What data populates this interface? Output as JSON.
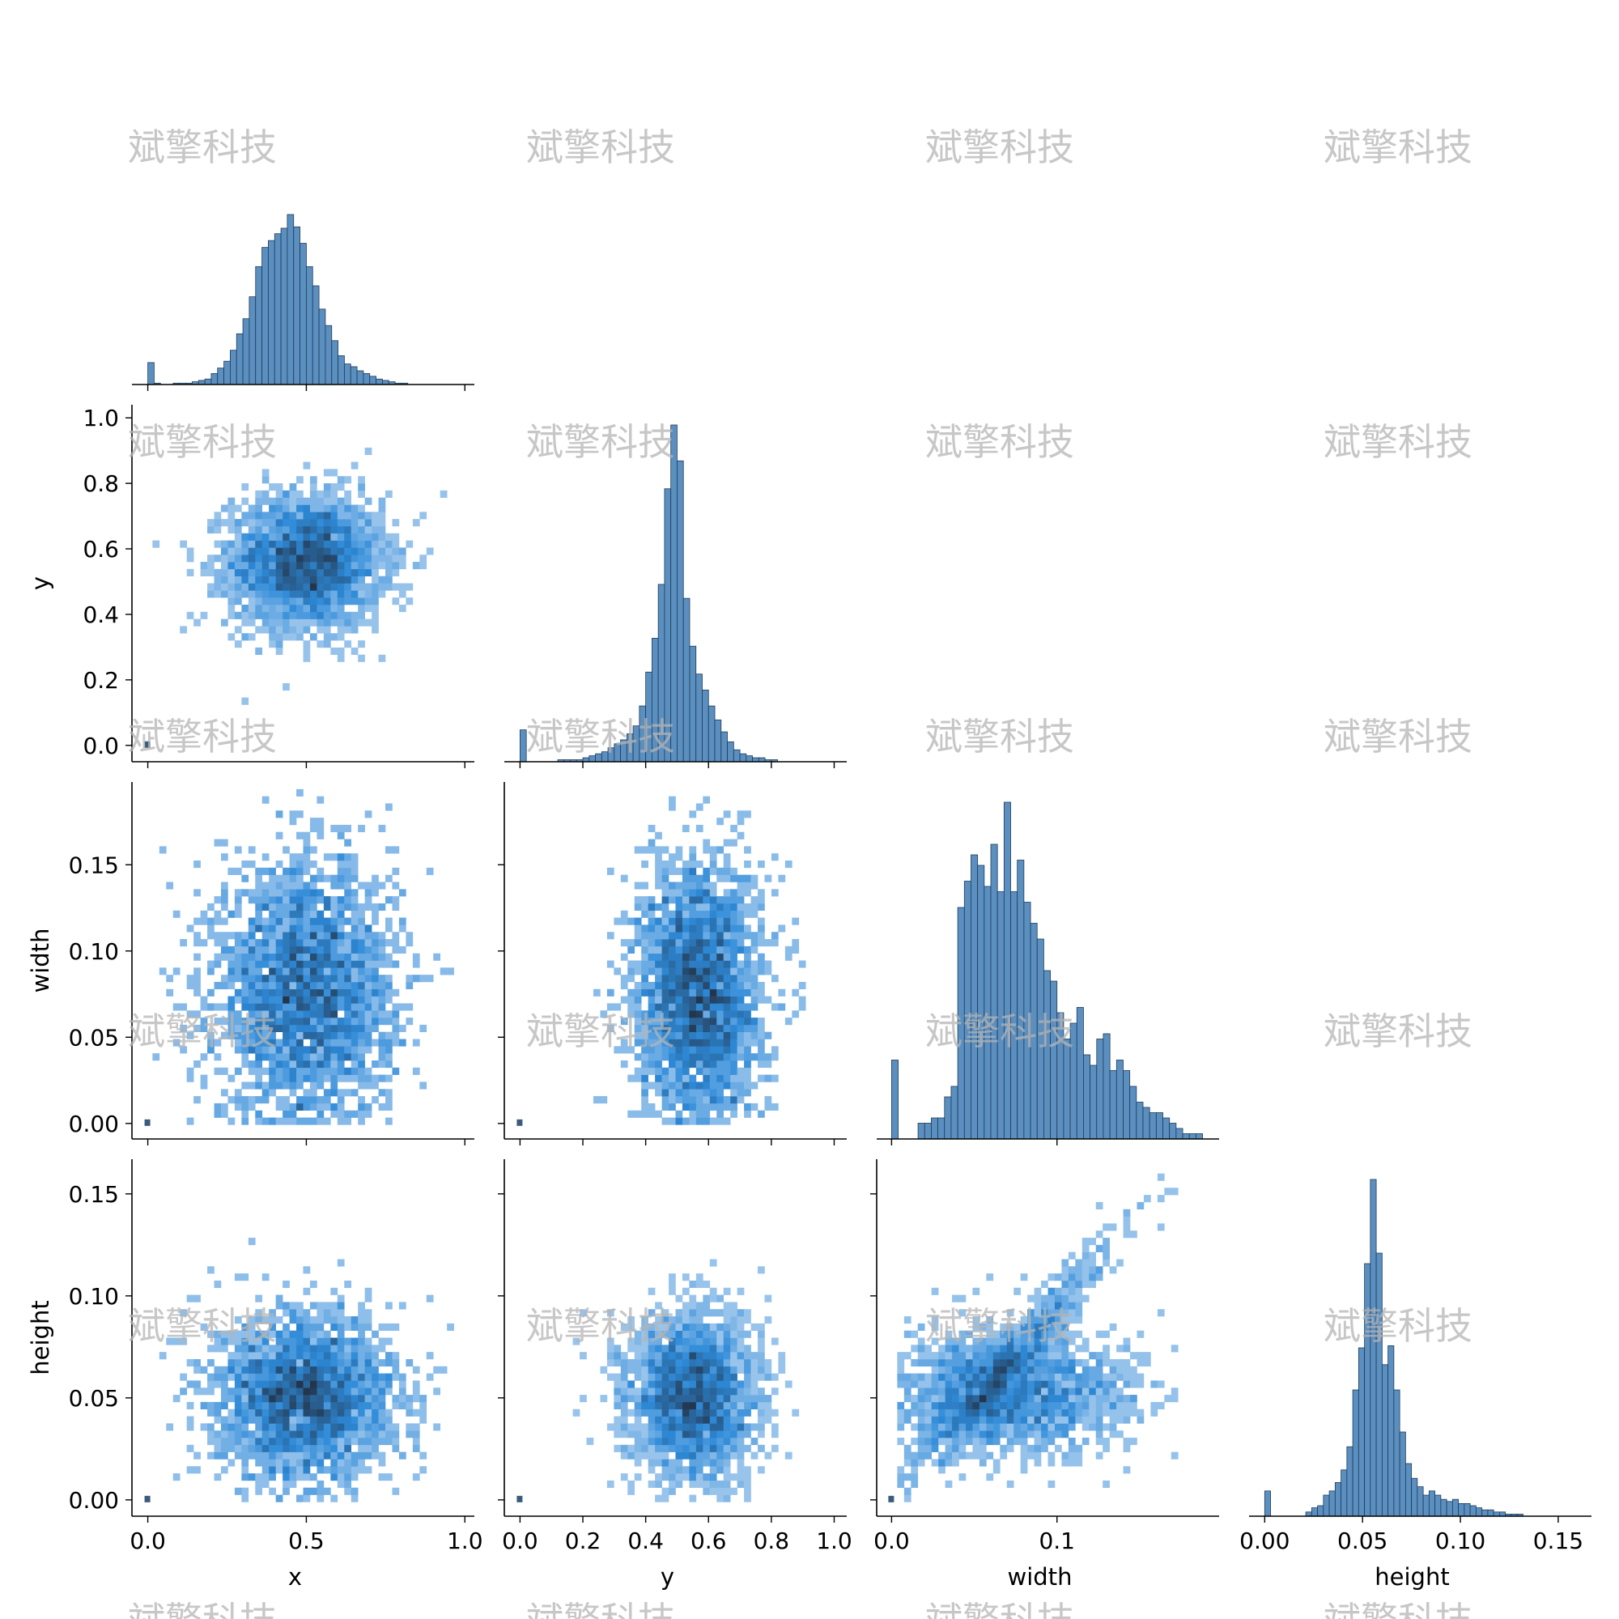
{
  "watermark": "斌擎科技",
  "chart_data": {
    "type": "pairplot",
    "variables": [
      "x",
      "y",
      "width",
      "height"
    ],
    "diag_type": "hist",
    "offdiag_type": "hist2d",
    "corner": true,
    "colors": {
      "bar_fill": "#5b8fc0",
      "bar_edge": "#1f3b57",
      "heat_low": "#c5dcf4",
      "heat_mid": "#2e8ad8",
      "heat_high": "#23364d"
    },
    "axes": {
      "x": {
        "label": "x",
        "range": [
          -0.05,
          1.03
        ],
        "ticks": [
          "0.0",
          "0.5",
          "1.0"
        ],
        "tick_values": [
          0,
          0.5,
          1.0
        ]
      },
      "y": {
        "label": "y",
        "range": [
          -0.05,
          1.04
        ],
        "ticks": [
          "0.0",
          "0.2",
          "0.4",
          "0.6",
          "0.8",
          "1.0"
        ],
        "tick_values": [
          0,
          0.2,
          0.4,
          0.6,
          0.8,
          1.0
        ]
      },
      "width": {
        "label": "width",
        "range": [
          -0.009,
          0.198
        ],
        "ticks": [
          "0.0",
          "0.1"
        ],
        "tick_values": [
          0,
          0.1
        ],
        "y_ticks": [
          "0.00",
          "0.05",
          "0.10",
          "0.15"
        ],
        "y_tick_values": [
          0,
          0.05,
          0.1,
          0.15
        ]
      },
      "height": {
        "label": "height",
        "range": [
          -0.008,
          0.167
        ],
        "ticks": [
          "0.00",
          "0.05",
          "0.10",
          "0.15"
        ],
        "tick_values": [
          0,
          0.05,
          0.1,
          0.15
        ]
      }
    },
    "diagonal": [
      {
        "variable": "x",
        "bins": [
          0.0,
          0.02,
          0.04,
          0.06,
          0.08,
          0.1,
          0.12,
          0.14,
          0.16,
          0.18,
          0.2,
          0.22,
          0.24,
          0.26,
          0.28,
          0.3,
          0.32,
          0.34,
          0.36,
          0.38,
          0.4,
          0.42,
          0.44,
          0.46,
          0.48,
          0.5,
          0.52,
          0.54,
          0.56,
          0.58,
          0.6,
          0.62,
          0.64,
          0.66,
          0.68,
          0.7,
          0.72,
          0.74,
          0.76,
          0.78,
          0.8,
          0.82,
          0.84,
          0.86,
          0.88,
          0.9,
          0.92,
          0.94,
          0.96,
          0.98
        ],
        "counts": [
          16,
          1,
          0,
          0,
          1,
          1,
          1,
          2,
          3,
          4,
          8,
          12,
          17,
          25,
          37,
          48,
          64,
          86,
          100,
          105,
          110,
          114,
          124,
          115,
          103,
          86,
          72,
          55,
          43,
          32,
          21,
          15,
          13,
          10,
          8,
          6,
          4,
          3,
          2,
          1,
          1,
          0,
          0,
          0,
          0,
          0,
          0,
          0,
          0,
          0
        ]
      },
      {
        "variable": "y",
        "bins": [
          0.0,
          0.02,
          0.04,
          0.06,
          0.08,
          0.1,
          0.12,
          0.14,
          0.16,
          0.18,
          0.2,
          0.22,
          0.24,
          0.26,
          0.28,
          0.3,
          0.32,
          0.34,
          0.36,
          0.38,
          0.4,
          0.42,
          0.44,
          0.46,
          0.48,
          0.5,
          0.52,
          0.54,
          0.56,
          0.58,
          0.6,
          0.62,
          0.64,
          0.66,
          0.68,
          0.7,
          0.72,
          0.74,
          0.76,
          0.78,
          0.8,
          0.82,
          0.84,
          0.86,
          0.88,
          0.9,
          0.92,
          0.94,
          0.96,
          0.98
        ],
        "counts": [
          16,
          0,
          0,
          0,
          0,
          0,
          1,
          1,
          1,
          1,
          2,
          3,
          4,
          5,
          7,
          9,
          11,
          14,
          18,
          28,
          45,
          62,
          89,
          137,
          169,
          151,
          82,
          58,
          44,
          36,
          28,
          21,
          15,
          10,
          6,
          4,
          3,
          2,
          2,
          1,
          1,
          0,
          0,
          0,
          0,
          0,
          0,
          0,
          0,
          0
        ]
      },
      {
        "variable": "width",
        "bins": [
          0.0,
          0.004,
          0.008,
          0.012,
          0.016,
          0.02,
          0.024,
          0.028,
          0.032,
          0.036,
          0.04,
          0.044,
          0.048,
          0.052,
          0.056,
          0.06,
          0.064,
          0.068,
          0.072,
          0.076,
          0.08,
          0.084,
          0.088,
          0.092,
          0.096,
          0.1,
          0.104,
          0.108,
          0.112,
          0.116,
          0.12,
          0.124,
          0.128,
          0.132,
          0.136,
          0.14,
          0.144,
          0.148,
          0.152,
          0.156,
          0.16,
          0.164,
          0.168,
          0.172,
          0.176,
          0.18,
          0.184
        ],
        "counts": [
          15,
          0,
          0,
          0,
          3,
          3,
          4,
          4,
          8,
          10,
          44,
          49,
          54,
          52,
          48,
          56,
          47,
          64,
          47,
          53,
          45,
          41,
          38,
          32,
          30,
          24,
          19,
          22,
          25,
          16,
          14,
          19,
          20,
          13,
          15,
          13,
          10,
          7,
          6,
          5,
          5,
          4,
          3,
          2,
          1,
          1,
          1
        ]
      },
      {
        "variable": "height",
        "bins": [
          0.0,
          0.003,
          0.006,
          0.009,
          0.012,
          0.015,
          0.018,
          0.021,
          0.024,
          0.027,
          0.03,
          0.033,
          0.036,
          0.039,
          0.042,
          0.045,
          0.048,
          0.051,
          0.054,
          0.057,
          0.06,
          0.063,
          0.066,
          0.069,
          0.072,
          0.075,
          0.078,
          0.081,
          0.084,
          0.087,
          0.09,
          0.093,
          0.096,
          0.099,
          0.102,
          0.105,
          0.108,
          0.111,
          0.114,
          0.117,
          0.12,
          0.123,
          0.126,
          0.129,
          0.132,
          0.135,
          0.138,
          0.141,
          0.144,
          0.147
        ],
        "counts": [
          12,
          0,
          0,
          0,
          0,
          0,
          0,
          2,
          4,
          5,
          10,
          12,
          16,
          22,
          33,
          60,
          80,
          120,
          160,
          125,
          72,
          81,
          60,
          40,
          25,
          18,
          14,
          10,
          12,
          10,
          8,
          7,
          8,
          6,
          6,
          5,
          4,
          3,
          3,
          2,
          2,
          1,
          1,
          1,
          0,
          0,
          0,
          0,
          0,
          0
        ]
      }
    ],
    "scatter_hist2d": [
      {
        "x": "x",
        "y": "y",
        "center": [
          0.5,
          0.56
        ],
        "spread": [
          0.12,
          0.1
        ],
        "outlier_at": [
          0.0,
          0.0
        ]
      },
      {
        "x": "x",
        "y": "width",
        "center": [
          0.5,
          0.075
        ],
        "spread": [
          0.14,
          0.038
        ],
        "outlier_at": [
          0.0,
          0.0
        ]
      },
      {
        "x": "y",
        "y": "width",
        "center": [
          0.57,
          0.075
        ],
        "spread": [
          0.1,
          0.038
        ],
        "outlier_at": [
          0.0,
          0.0
        ]
      },
      {
        "x": "x",
        "y": "height",
        "center": [
          0.5,
          0.05
        ],
        "spread": [
          0.14,
          0.02
        ],
        "outlier_at": [
          0.0,
          0.0
        ]
      },
      {
        "x": "y",
        "y": "height",
        "center": [
          0.55,
          0.05
        ],
        "spread": [
          0.1,
          0.02
        ],
        "outlier_at": [
          0.0,
          0.0
        ]
      },
      {
        "x": "width",
        "y": "height",
        "center": [
          0.07,
          0.052
        ],
        "spread": [
          0.035,
          0.015
        ],
        "outlier_at": [
          0.0,
          0.0
        ]
      }
    ]
  }
}
